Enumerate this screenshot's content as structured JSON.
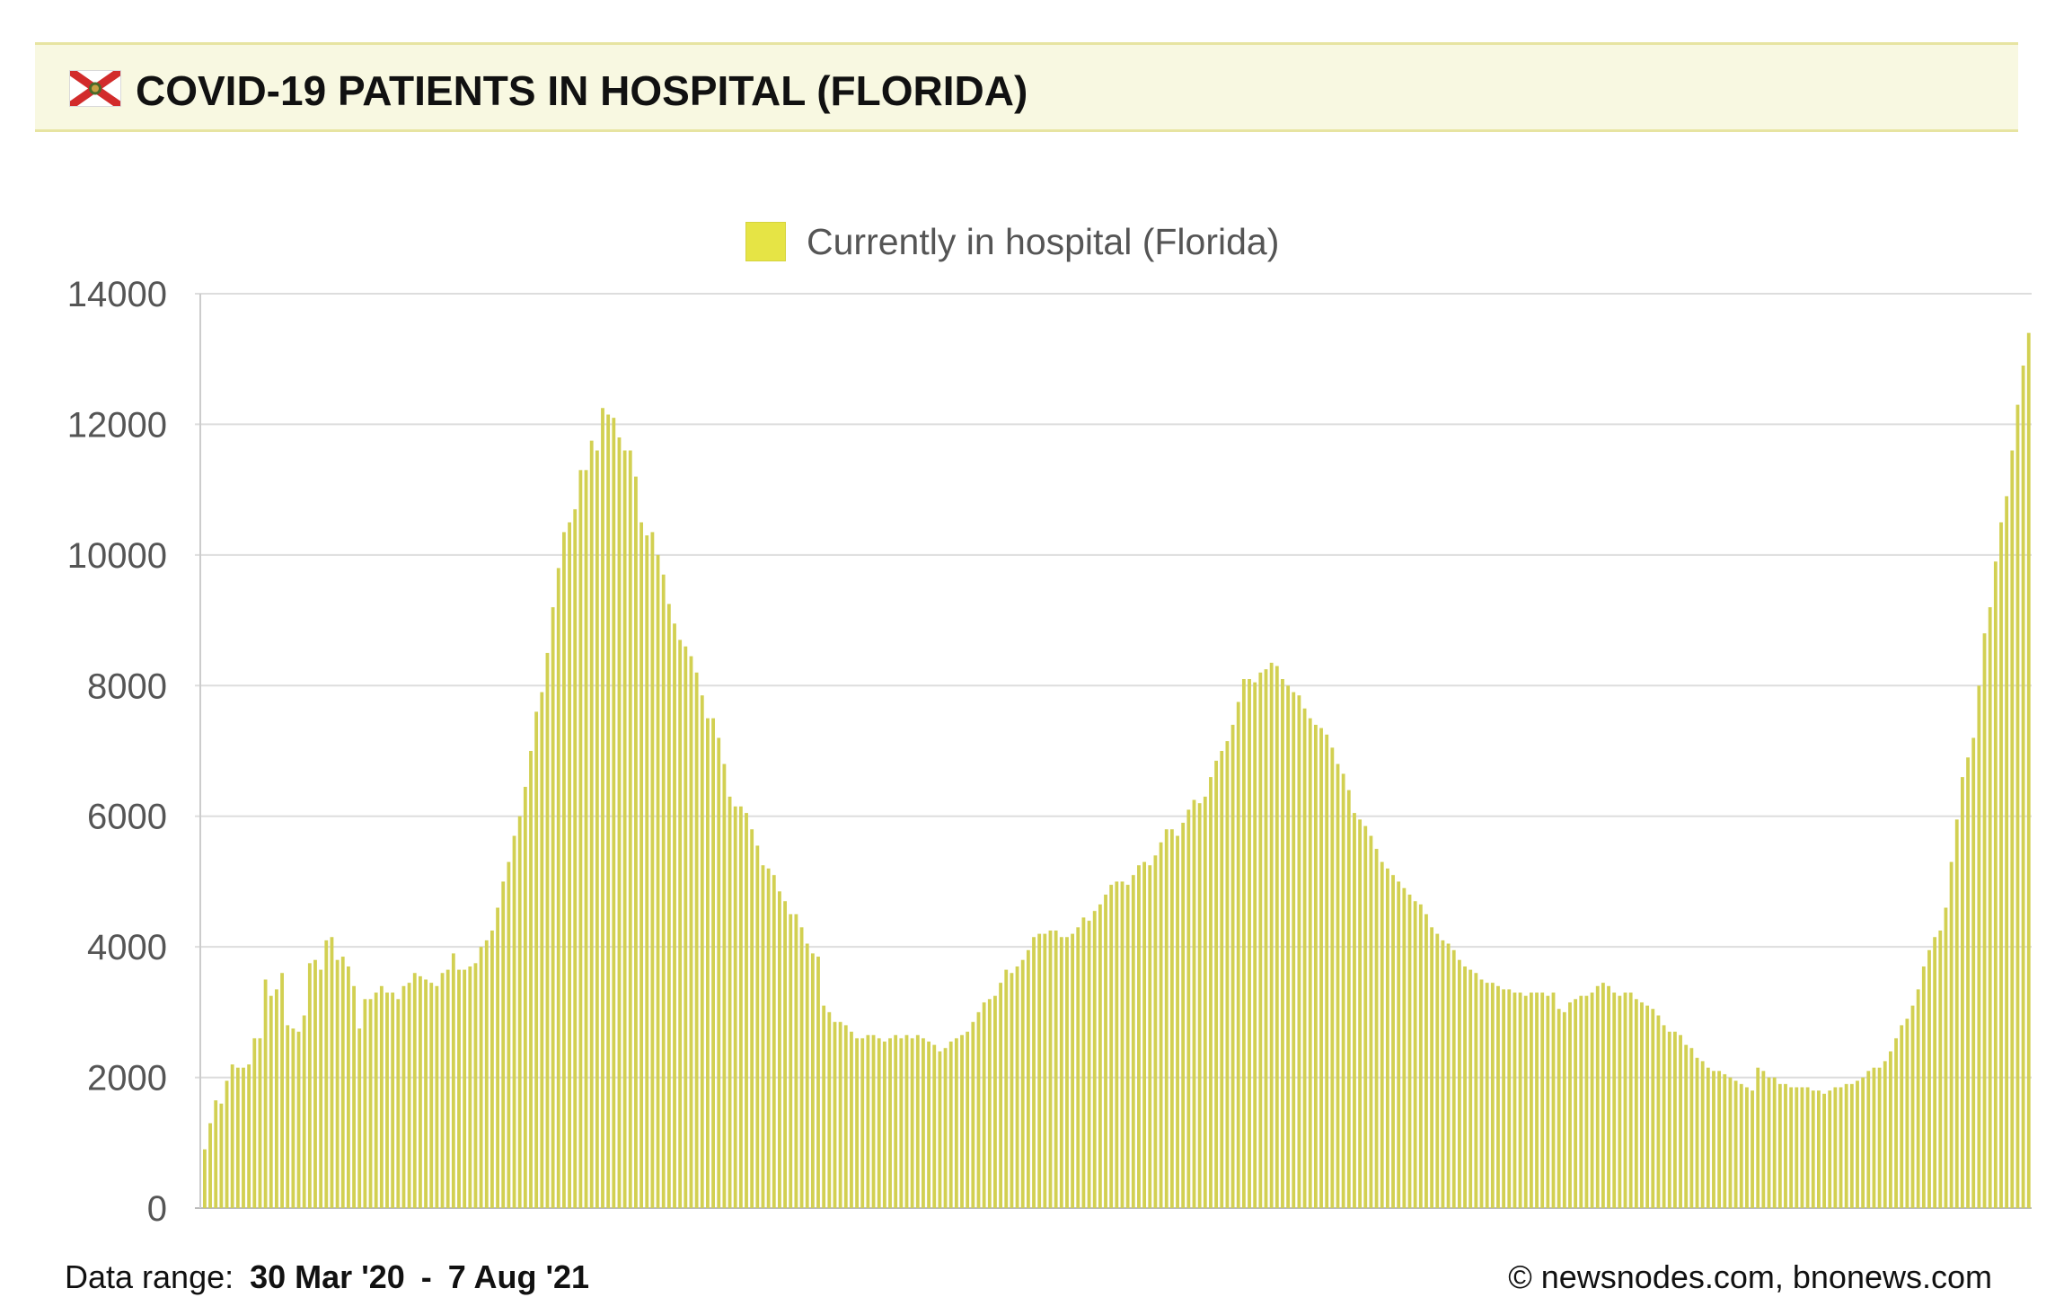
{
  "title": "COVID-19 PATIENTS IN HOSPITAL (FLORIDA)",
  "icons": {
    "flag": "florida-flag-icon"
  },
  "colors": {
    "bar": "#d2d052",
    "bar_edge": "#c2c042",
    "legend": "#e6e445",
    "title_bg": "#f8f8e1",
    "grid": "#dddddd"
  },
  "footer": {
    "range_label": "Data range:",
    "range_start": "30 Mar '20",
    "range_sep": "-",
    "range_end": "7 Aug '21",
    "credit": "© newsnodes.com, bnonews.com"
  },
  "chart_data": {
    "type": "bar",
    "legend": [
      "Currently in hospital (Florida)"
    ],
    "legend_position": "top-center",
    "ylim": [
      0,
      14000
    ],
    "yticks": [
      "0",
      "2000",
      "4000",
      "6000",
      "8000",
      "10000",
      "12000",
      "14000"
    ],
    "grid": true,
    "x_start": "2020-03-30",
    "x_end": "2021-08-07",
    "series": [
      {
        "name": "Currently in hospital (Florida)",
        "values": [
          900,
          1300,
          1650,
          1600,
          1950,
          2200,
          2150,
          2150,
          2200,
          2600,
          2600,
          3500,
          3250,
          3350,
          3600,
          2800,
          2750,
          2700,
          2950,
          3750,
          3800,
          3650,
          4100,
          4150,
          3800,
          3850,
          3700,
          3400,
          2750,
          3200,
          3200,
          3300,
          3400,
          3300,
          3300,
          3200,
          3400,
          3450,
          3600,
          3550,
          3500,
          3450,
          3400,
          3600,
          3650,
          3900,
          3650,
          3650,
          3700,
          3750,
          4000,
          4100,
          4250,
          4600,
          5000,
          5300,
          5700,
          6000,
          6450,
          7000,
          7600,
          7900,
          8500,
          9200,
          9800,
          10350,
          10500,
          10700,
          11300,
          11300,
          11750,
          11600,
          12250,
          12150,
          12100,
          11800,
          11600,
          11600,
          11200,
          10500,
          10300,
          10350,
          10000,
          9700,
          9250,
          8950,
          8700,
          8600,
          8450,
          8200,
          7850,
          7500,
          7500,
          7200,
          6800,
          6300,
          6150,
          6150,
          6050,
          5800,
          5550,
          5250,
          5200,
          5100,
          4850,
          4700,
          4500,
          4500,
          4300,
          4050,
          3900,
          3850,
          3100,
          3000,
          2850,
          2850,
          2800,
          2700,
          2600,
          2600,
          2650,
          2650,
          2600,
          2550,
          2600,
          2650,
          2600,
          2650,
          2600,
          2650,
          2600,
          2550,
          2500,
          2400,
          2450,
          2550,
          2600,
          2650,
          2700,
          2850,
          3000,
          3150,
          3200,
          3250,
          3450,
          3650,
          3600,
          3700,
          3800,
          3950,
          4150,
          4200,
          4200,
          4250,
          4250,
          4150,
          4150,
          4200,
          4300,
          4450,
          4400,
          4550,
          4650,
          4800,
          4950,
          5000,
          5000,
          4950,
          5100,
          5250,
          5300,
          5250,
          5400,
          5600,
          5800,
          5800,
          5700,
          5900,
          6100,
          6250,
          6200,
          6300,
          6600,
          6850,
          7000,
          7150,
          7400,
          7750,
          8100,
          8100,
          8050,
          8200,
          8250,
          8350,
          8300,
          8100,
          8000,
          7900,
          7850,
          7650,
          7500,
          7400,
          7350,
          7250,
          7050,
          6800,
          6650,
          6400,
          6050,
          5950,
          5850,
          5700,
          5500,
          5300,
          5200,
          5100,
          5000,
          4900,
          4800,
          4700,
          4650,
          4500,
          4300,
          4200,
          4100,
          4050,
          3950,
          3800,
          3700,
          3650,
          3600,
          3500,
          3450,
          3450,
          3400,
          3350,
          3350,
          3300,
          3300,
          3250,
          3300,
          3300,
          3300,
          3250,
          3300,
          3050,
          3000,
          3150,
          3200,
          3250,
          3250,
          3300,
          3400,
          3450,
          3400,
          3300,
          3250,
          3300,
          3300,
          3200,
          3150,
          3100,
          3050,
          2950,
          2800,
          2700,
          2700,
          2650,
          2500,
          2450,
          2300,
          2250,
          2150,
          2100,
          2100,
          2050,
          2000,
          1950,
          1900,
          1850,
          1800,
          2150,
          2100,
          2000,
          2000,
          1900,
          1900,
          1850,
          1850,
          1850,
          1850,
          1800,
          1800,
          1750,
          1800,
          1850,
          1850,
          1900,
          1900,
          1950,
          2000,
          2100,
          2150,
          2150,
          2250,
          2400,
          2600,
          2800,
          2900,
          3100,
          3350,
          3700,
          3950,
          4150,
          4250,
          4600,
          5300,
          5950,
          6600,
          6900,
          7200,
          8000,
          8800,
          9200,
          9900,
          10500,
          10900,
          11600,
          12300,
          12900,
          13400
        ]
      }
    ]
  }
}
